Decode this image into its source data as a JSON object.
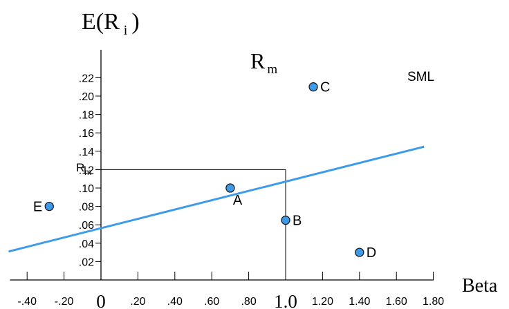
{
  "chart_data": {
    "type": "scatter",
    "title": "",
    "ylabel": "E(R",
    "ylabel_sub": "i",
    "ylabel_close": ")",
    "xlabel": "Beta",
    "xlim": [
      -0.5,
      1.85
    ],
    "ylim": [
      0,
      0.23
    ],
    "x_ticks": [
      {
        "value": -0.4,
        "label": "-.40"
      },
      {
        "value": -0.2,
        "label": "-.20"
      },
      {
        "value": 0.0,
        "label": "0"
      },
      {
        "value": 0.2,
        "label": ".20"
      },
      {
        "value": 0.4,
        "label": ".40"
      },
      {
        "value": 0.6,
        "label": ".60"
      },
      {
        "value": 0.8,
        "label": ".80"
      },
      {
        "value": 1.0,
        "label": "1.0"
      },
      {
        "value": 1.2,
        "label": "1.20"
      },
      {
        "value": 1.4,
        "label": "1.40"
      },
      {
        "value": 1.6,
        "label": "1.60"
      },
      {
        "value": 1.8,
        "label": "1.80"
      }
    ],
    "y_ticks": [
      {
        "value": 0.02,
        "label": ".02"
      },
      {
        "value": 0.04,
        "label": ".04"
      },
      {
        "value": 0.06,
        "label": ".06"
      },
      {
        "value": 0.08,
        "label": ".08"
      },
      {
        "value": 0.1,
        "label": ".10"
      },
      {
        "value": 0.12,
        "label": ".12"
      },
      {
        "value": 0.14,
        "label": ".14"
      },
      {
        "value": 0.16,
        "label": ".16"
      },
      {
        "value": 0.18,
        "label": ".18"
      },
      {
        "value": 0.2,
        "label": ".20"
      },
      {
        "value": 0.22,
        "label": ".22"
      }
    ],
    "rm_tick": {
      "value": 0.12,
      "label": "R",
      "sub": "m"
    },
    "sml": {
      "label": "SML",
      "x": [
        -0.5,
        1.75
      ],
      "y": [
        0.031,
        0.145
      ],
      "color": "#3d9bea"
    },
    "market_point_label": {
      "text": "R",
      "sub": "m"
    },
    "market_reference": {
      "beta": 1.0,
      "return": 0.12
    },
    "points": [
      {
        "name": "A",
        "x": 0.7,
        "y": 0.1
      },
      {
        "name": "B",
        "x": 1.0,
        "y": 0.065
      },
      {
        "name": "C",
        "x": 1.15,
        "y": 0.21
      },
      {
        "name": "D",
        "x": 1.4,
        "y": 0.03
      },
      {
        "name": "E",
        "x": -0.28,
        "y": 0.08
      }
    ],
    "point_color": "#3d9bea",
    "grid": false
  }
}
